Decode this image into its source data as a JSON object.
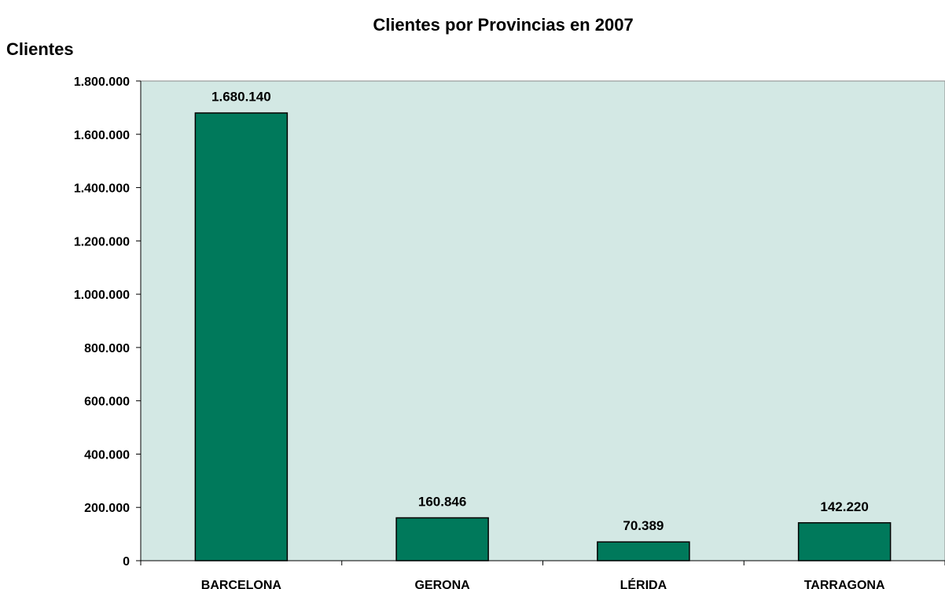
{
  "chart_data": {
    "type": "bar",
    "title": "Clientes por Provincias en 2007",
    "ylabel": "Clientes",
    "xlabel": "",
    "categories": [
      "BARCELONA",
      "GERONA",
      "LÉRIDA",
      "TARRAGONA"
    ],
    "values": [
      1680140,
      160846,
      70389,
      142220
    ],
    "value_labels": [
      "1.680.140",
      "160.846",
      "70.389",
      "142.220"
    ],
    "ylim": [
      0,
      1800000
    ],
    "yticks": [
      0,
      200000,
      400000,
      600000,
      800000,
      1000000,
      1200000,
      1400000,
      1600000,
      1800000
    ],
    "ytick_labels": [
      "0",
      "200.000",
      "400.000",
      "600.000",
      "800.000",
      "1.000.000",
      "1.200.000",
      "1.400.000",
      "1.600.000",
      "1.800.000"
    ],
    "grid": false,
    "legend": "none"
  },
  "colors": {
    "plot_background": "#d3e8e4",
    "bar_fill": "#00795b",
    "bar_stroke": "#000000",
    "axis": "#000000"
  }
}
